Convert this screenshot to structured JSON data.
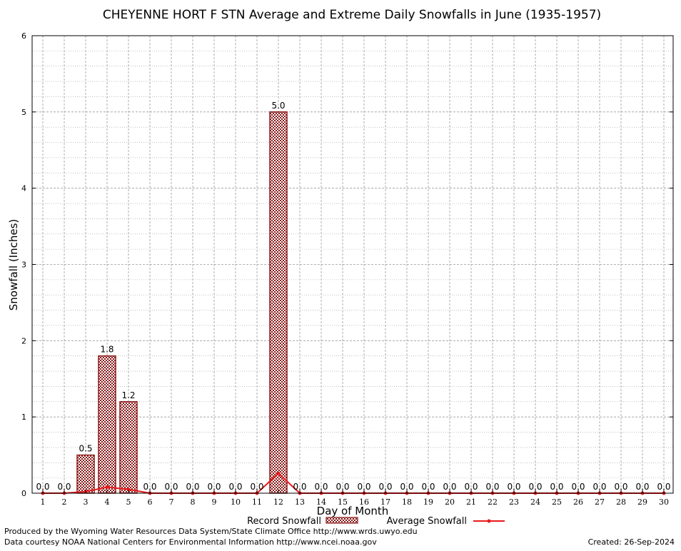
{
  "chart_data": {
    "type": "bar",
    "title": "CHEYENNE HORT F STN Average and Extreme Daily Snowfalls in June (1935-1957)",
    "xlabel": "Day of Month",
    "ylabel": "Snowfall (Inches)",
    "ylim": [
      0,
      6
    ],
    "yticks": [
      "0",
      "1",
      "2",
      "3",
      "4",
      "5",
      "6"
    ],
    "grid": true,
    "legend_position": "bottom",
    "categories": [
      "1",
      "2",
      "3",
      "4",
      "5",
      "6",
      "7",
      "8",
      "9",
      "10",
      "11",
      "12",
      "13",
      "14",
      "15",
      "16",
      "17",
      "18",
      "19",
      "20",
      "21",
      "22",
      "23",
      "24",
      "25",
      "26",
      "27",
      "28",
      "29",
      "30"
    ],
    "series": [
      {
        "name": "Record Snowfall",
        "kind": "bar",
        "color": "#8b1a1a",
        "values": [
          0.0,
          0.0,
          0.5,
          1.8,
          1.2,
          0.0,
          0.0,
          0.0,
          0.0,
          0.0,
          0.0,
          5.0,
          0.0,
          0.0,
          0.0,
          0.0,
          0.0,
          0.0,
          0.0,
          0.0,
          0.0,
          0.0,
          0.0,
          0.0,
          0.0,
          0.0,
          0.0,
          0.0,
          0.0,
          0.0
        ],
        "labels": [
          "0.0",
          "0.0",
          "0.5",
          "1.8",
          "1.2",
          "0.0",
          "0.0",
          "0.0",
          "0.0",
          "0.0",
          "0.0",
          "5.0",
          "0.0",
          "0.0",
          "0.0",
          "0.0",
          "0.0",
          "0.0",
          "0.0",
          "0.0",
          "0.0",
          "0.0",
          "0.0",
          "0.0",
          "0.0",
          "0.0",
          "0.0",
          "0.0",
          "0.0",
          "0.0"
        ]
      },
      {
        "name": "Average Snowfall",
        "kind": "line",
        "color": "#e8191b",
        "values": [
          0,
          0,
          0.02,
          0.08,
          0.05,
          0,
          0,
          0,
          0,
          0,
          0,
          0.26,
          0,
          0,
          0,
          0,
          0,
          0,
          0,
          0,
          0,
          0,
          0,
          0,
          0,
          0,
          0,
          0,
          0,
          0
        ]
      }
    ]
  },
  "footer": {
    "credit": "Produced by the Wyoming Water Resources Data System/State Climate Office http://www.wrds.uwyo.edu",
    "source": "Data courtesy NOAA National Centers for Environmental Information http://www.ncei.noaa.gov",
    "created": "Created: 26-Sep-2024"
  }
}
